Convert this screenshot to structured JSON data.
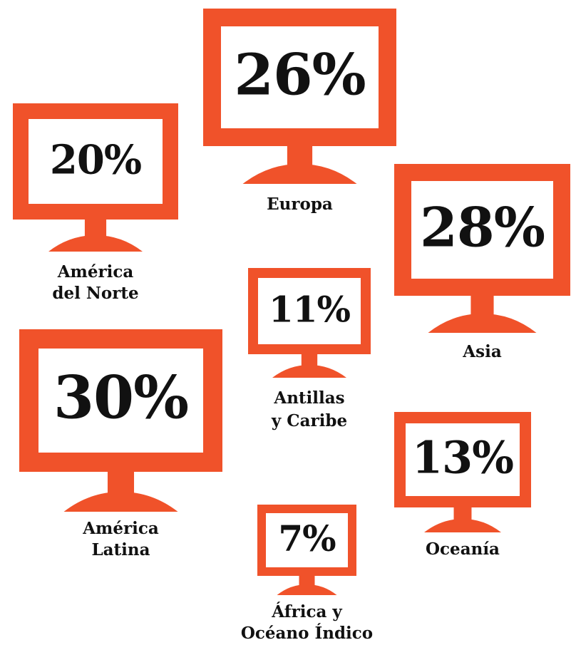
{
  "regions": [
    {
      "value": "26%",
      "label": [
        "Europa"
      ]
    },
    {
      "value": "20%",
      "label": [
        "América",
        "del Norte"
      ]
    },
    {
      "value": "28%",
      "label": [
        "Asia"
      ]
    },
    {
      "value": "11%",
      "label": [
        "Antillas",
        "y Caribe"
      ]
    },
    {
      "value": "30%",
      "label": [
        "América",
        "Latina"
      ]
    },
    {
      "value": "13%",
      "label": [
        "Oceanía"
      ]
    },
    {
      "value": "7%",
      "label": [
        "África y",
        "Océano Índico"
      ]
    }
  ]
}
